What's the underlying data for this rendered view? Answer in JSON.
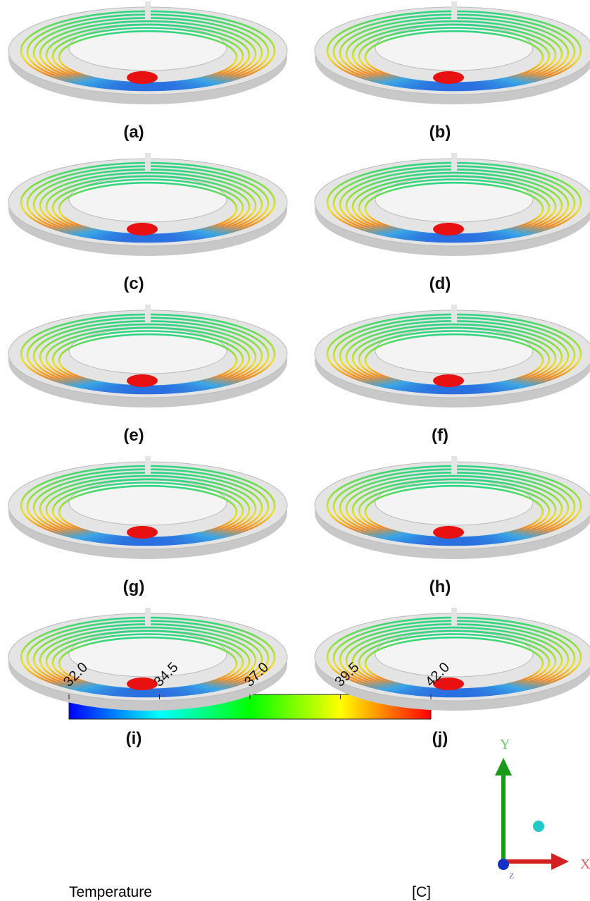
{
  "panels": [
    {
      "label": "(a)"
    },
    {
      "label": "(b)"
    },
    {
      "label": "(c)"
    },
    {
      "label": "(d)"
    },
    {
      "label": "(e)"
    },
    {
      "label": "(f)"
    },
    {
      "label": "(g)"
    },
    {
      "label": "(h)"
    },
    {
      "label": "(i)"
    },
    {
      "label": "(j)"
    }
  ],
  "colorbar": {
    "range": [
      32,
      42
    ],
    "ticks": [
      {
        "value": 32,
        "label": "32.0"
      },
      {
        "value": 34.5,
        "label": "34.5"
      },
      {
        "value": 37,
        "label": "37.0"
      },
      {
        "value": 39.5,
        "label": "39.5"
      },
      {
        "value": 42,
        "label": "42.0"
      }
    ],
    "title": "Temperature",
    "unit": "[C]"
  },
  "axes": {
    "y": "Y",
    "x": "X",
    "z": "Z"
  }
}
